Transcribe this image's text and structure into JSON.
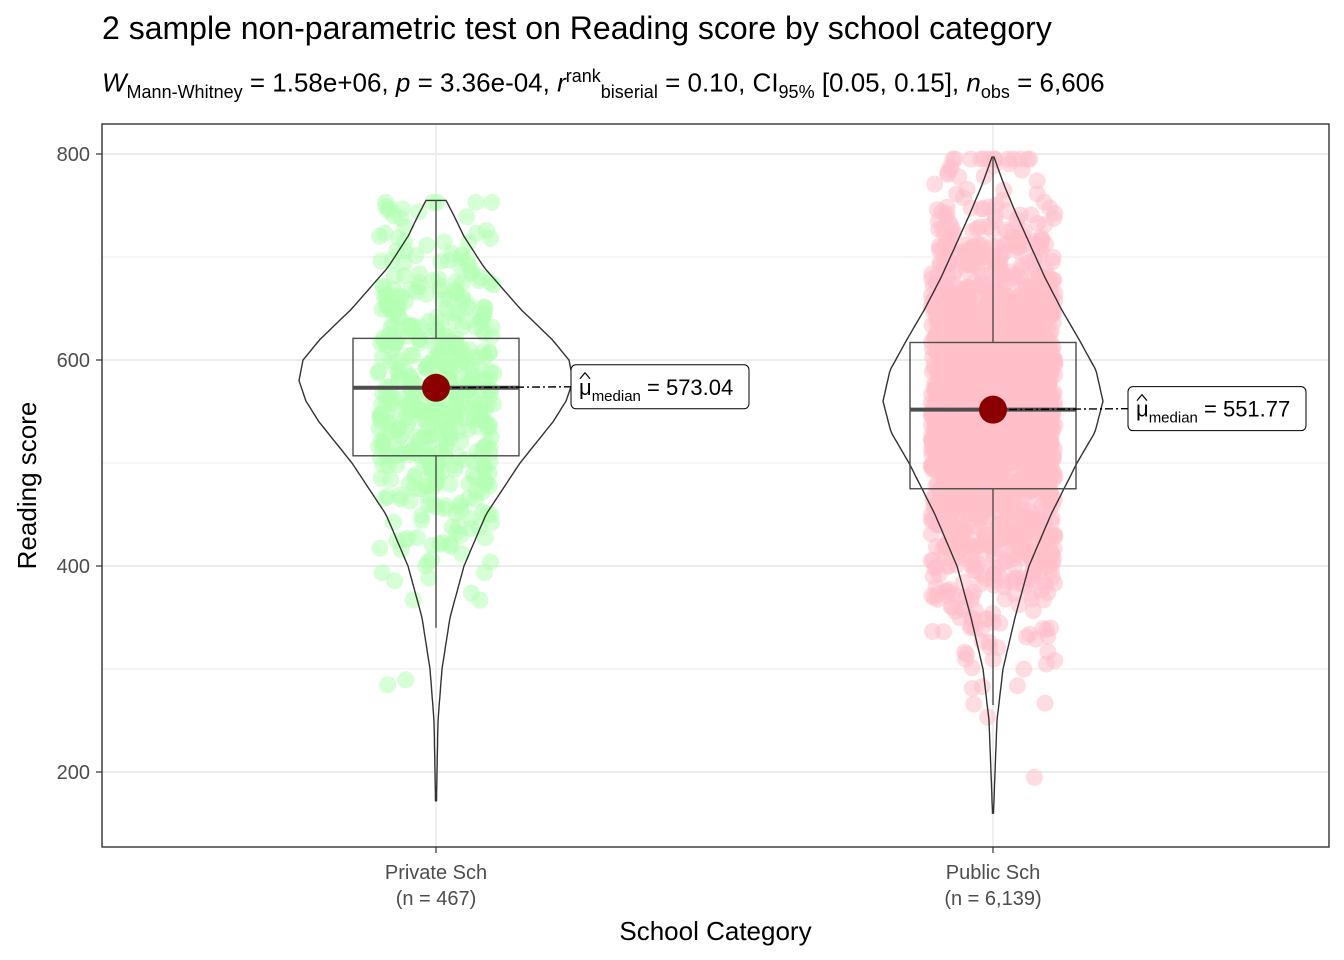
{
  "chart_data": {
    "type": "violin",
    "title": "2 sample non-parametric test on Reading score by school category",
    "subtitle": {
      "statistic_label": "W",
      "statistic_sub": "Mann-Whitney",
      "statistic_value": "1.58e+06",
      "p_label": "p",
      "p_value": "3.36e-04",
      "effsize_label": "r",
      "effsize_sup": "rank",
      "effsize_sub": "biserial",
      "effsize_value": "0.10",
      "ci_label": "CI",
      "ci_sub": "95%",
      "ci_value": "[0.05, 0.15]",
      "n_label": "n",
      "n_sub": "obs",
      "n_value": "6,606"
    },
    "xlabel": "School Category",
    "ylabel": "Reading score",
    "ylim": [
      125,
      800
    ],
    "yticks": [
      200,
      400,
      600,
      800
    ],
    "grid": true,
    "groups": [
      {
        "name": "Private Sch",
        "n_label": "(n = 467)",
        "color": "#b3ffb3",
        "median": 573.04,
        "median_label": "573.04",
        "q1": 507,
        "q3": 621,
        "whisker_low": 340,
        "whisker_high": 755,
        "min": 172,
        "max": 755
      },
      {
        "name": "Public Sch",
        "n_label": "(n = 6,139)",
        "color": "#ffc0cb",
        "median": 551.77,
        "median_label": "551.77",
        "q1": 475,
        "q3": 617,
        "whisker_low": 265,
        "whisker_high": 797,
        "min": 160,
        "max": 797
      }
    ],
    "median_point_color": "#8b0000",
    "median_symbol": "μ",
    "median_sub": "median"
  }
}
